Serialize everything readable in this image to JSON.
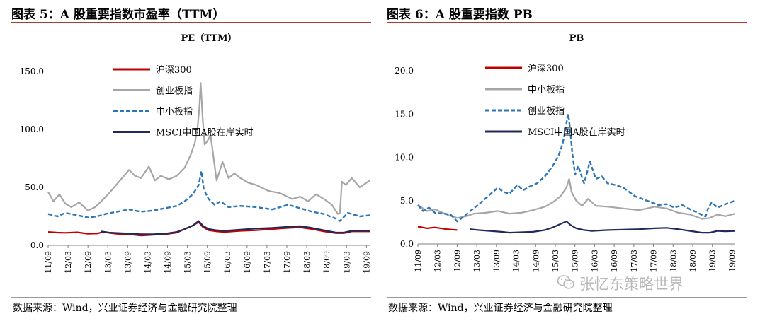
{
  "panels": [
    {
      "fig_title": "图表 5：A 股重要指数市盈率（TTM）",
      "source": "数据来源：Wind，兴业证券经济与金融研究院整理"
    },
    {
      "fig_title": "图表 6：A 股重要指数 PB",
      "source": "数据来源：Wind，兴业证券经济与金融研究院整理"
    }
  ],
  "watermark": "张忆东策略世界",
  "watermark_icon": "wechat-icon",
  "chart_data": [
    {
      "type": "line",
      "title": "PE（TTM）",
      "xlabel": "",
      "ylabel": "",
      "ylim": [
        0,
        150
      ],
      "yticks": [
        0,
        50,
        100,
        150
      ],
      "ytick_labels": [
        "0.0",
        "50.0",
        "100.0",
        "150.0"
      ],
      "xlim": [
        2011.667,
        2019.75
      ],
      "xticks": [
        2011.667,
        2012.167,
        2012.667,
        2013.167,
        2013.667,
        2014.167,
        2014.667,
        2015.167,
        2015.667,
        2016.167,
        2016.667,
        2017.167,
        2017.667,
        2018.167,
        2018.667,
        2019.167,
        2019.667
      ],
      "xtick_labels": [
        "11/09",
        "12/03",
        "12/09",
        "13/03",
        "13/09",
        "14/03",
        "14/09",
        "15/03",
        "15/09",
        "16/03",
        "16/09",
        "17/03",
        "17/09",
        "18/03",
        "18/09",
        "19/03",
        "19/09"
      ],
      "grid": false,
      "legend_position": "top-left-inside",
      "series": [
        {
          "name": "沪深300",
          "color": "#c00000",
          "style": "solid",
          "x": [
            2011.667,
            2011.9,
            2012.1,
            2012.4,
            2012.667,
            2012.9,
            2013.05,
            2013.25,
            2013.5,
            2013.8,
            2014.0,
            2014.3,
            2014.6,
            2014.9,
            2015.1,
            2015.3,
            2015.45,
            2015.55,
            2015.7,
            2015.9,
            2016.1,
            2016.5,
            2016.9,
            2017.3,
            2017.7,
            2018.0,
            2018.3,
            2018.6,
            2018.9,
            2019.1,
            2019.3,
            2019.5,
            2019.75
          ],
          "values": [
            11.5,
            11,
            10.8,
            11.2,
            10,
            10.2,
            11.5,
            10.5,
            9.5,
            9.2,
            8.5,
            9,
            9.5,
            11,
            14,
            17,
            20,
            16,
            13,
            12,
            11.5,
            12.5,
            13,
            14,
            15,
            15.5,
            14,
            12,
            10.5,
            10.5,
            12,
            12,
            12
          ]
        },
        {
          "name": "创业板指",
          "color": "#a6a6a6",
          "style": "solid",
          "x": [
            2011.667,
            2011.8,
            2011.95,
            2012.1,
            2012.25,
            2012.45,
            2012.667,
            2012.85,
            2013.0,
            2013.2,
            2013.45,
            2013.7,
            2013.85,
            2014.0,
            2014.2,
            2014.35,
            2014.5,
            2014.7,
            2014.9,
            2015.1,
            2015.25,
            2015.35,
            2015.42,
            2015.47,
            2015.5,
            2015.55,
            2015.6,
            2015.67,
            2015.75,
            2015.9,
            2016.05,
            2016.2,
            2016.35,
            2016.5,
            2016.7,
            2016.9,
            2017.2,
            2017.5,
            2017.8,
            2018.0,
            2018.2,
            2018.4,
            2018.6,
            2018.8,
            2018.95,
            2019.0,
            2019.05,
            2019.15,
            2019.3,
            2019.5,
            2019.75
          ],
          "values": [
            46,
            38,
            44,
            36,
            33,
            37,
            30,
            33,
            38,
            45,
            55,
            65,
            60,
            58,
            68,
            56,
            60,
            57,
            60,
            67,
            78,
            88,
            100,
            120,
            140,
            110,
            87,
            90,
            95,
            56,
            72,
            58,
            62,
            58,
            54,
            52,
            47,
            45,
            40,
            42,
            38,
            44,
            40,
            35,
            27,
            28,
            55,
            52,
            58,
            50,
            56
          ]
        },
        {
          "name": "中小板指",
          "color": "#2e75b6",
          "style": "dashed",
          "x": [
            2011.667,
            2011.9,
            2012.1,
            2012.4,
            2012.667,
            2012.9,
            2013.1,
            2013.4,
            2013.7,
            2014.0,
            2014.3,
            2014.6,
            2014.9,
            2015.1,
            2015.3,
            2015.45,
            2015.52,
            2015.58,
            2015.7,
            2015.85,
            2016.0,
            2016.2,
            2016.5,
            2016.9,
            2017.3,
            2017.7,
            2018.0,
            2018.3,
            2018.6,
            2018.9,
            2019.0,
            2019.2,
            2019.5,
            2019.75
          ],
          "values": [
            27,
            25,
            28,
            26,
            24,
            25,
            27,
            29,
            31,
            29,
            30,
            32,
            34,
            38,
            44,
            52,
            64,
            48,
            40,
            35,
            38,
            33,
            34,
            33,
            31,
            35,
            32,
            29,
            27,
            23,
            21,
            28,
            25,
            26
          ]
        },
        {
          "name": "MSCI中国A股在岸实时",
          "color": "#1f2a5a",
          "style": "solid",
          "x": [
            2013.0,
            2013.2,
            2013.5,
            2013.8,
            2014.0,
            2014.3,
            2014.6,
            2014.9,
            2015.1,
            2015.3,
            2015.45,
            2015.55,
            2015.7,
            2015.9,
            2016.1,
            2016.5,
            2016.9,
            2017.3,
            2017.7,
            2018.0,
            2018.3,
            2018.6,
            2018.9,
            2019.1,
            2019.3,
            2019.5,
            2019.75
          ],
          "values": [
            12,
            11,
            10.5,
            10,
            9.5,
            9.5,
            10,
            11.5,
            14,
            17,
            21,
            17,
            14,
            13,
            12.5,
            13.5,
            14.5,
            15,
            16,
            16.5,
            15,
            13,
            11,
            11,
            12.5,
            12.5,
            12.5
          ]
        }
      ]
    },
    {
      "type": "line",
      "title": "PB",
      "xlabel": "",
      "ylabel": "",
      "ylim": [
        0,
        20
      ],
      "yticks": [
        0,
        5,
        10,
        15,
        20
      ],
      "ytick_labels": [
        "0.0",
        "5.0",
        "10.0",
        "15.0",
        "20.0"
      ],
      "xlim": [
        2011.667,
        2019.75
      ],
      "xticks": [
        2011.667,
        2012.167,
        2012.667,
        2013.167,
        2013.667,
        2014.167,
        2014.667,
        2015.167,
        2015.667,
        2016.167,
        2016.667,
        2017.167,
        2017.667,
        2018.167,
        2018.667,
        2019.167,
        2019.667
      ],
      "xtick_labels": [
        "11/09",
        "12/03",
        "12/09",
        "13/03",
        "13/09",
        "14/03",
        "14/09",
        "15/03",
        "15/09",
        "16/03",
        "16/09",
        "17/03",
        "17/09",
        "18/03",
        "18/09",
        "19/03",
        "19/09"
      ],
      "grid": false,
      "legend_position": "top-center-inside",
      "series": [
        {
          "name": "沪深300",
          "color": "#c00000",
          "style": "solid",
          "x": [
            2011.667,
            2011.9,
            2012.1,
            2012.4,
            2012.667
          ],
          "values": [
            2.0,
            1.8,
            1.9,
            1.7,
            1.6
          ]
        },
        {
          "name": "中小板指",
          "color": "#a6a6a6",
          "style": "solid",
          "x": [
            2011.667,
            2011.9,
            2012.1,
            2012.4,
            2012.667,
            2012.9,
            2013.1,
            2013.4,
            2013.7,
            2014.0,
            2014.3,
            2014.6,
            2014.9,
            2015.1,
            2015.3,
            2015.45,
            2015.52,
            2015.58,
            2015.7,
            2015.85,
            2016.0,
            2016.2,
            2016.5,
            2016.9,
            2017.3,
            2017.7,
            2018.0,
            2018.3,
            2018.6,
            2018.9,
            2019.1,
            2019.3,
            2019.5,
            2019.75
          ],
          "values": [
            4.5,
            3.8,
            4.0,
            3.4,
            3.0,
            3.2,
            3.5,
            3.6,
            3.8,
            3.5,
            3.6,
            3.9,
            4.3,
            4.8,
            5.5,
            6.5,
            7.5,
            6.0,
            5.0,
            4.4,
            5.2,
            4.4,
            4.3,
            4.1,
            3.9,
            4.3,
            4.1,
            3.6,
            3.4,
            2.9,
            3.0,
            3.4,
            3.2,
            3.5
          ]
        },
        {
          "name": "创业板指",
          "color": "#2e75b6",
          "style": "dashed",
          "x": [
            2011.667,
            2011.8,
            2011.95,
            2012.1,
            2012.3,
            2012.5,
            2012.667,
            2012.85,
            2013.0,
            2013.2,
            2013.45,
            2013.7,
            2013.85,
            2014.0,
            2014.2,
            2014.35,
            2014.5,
            2014.7,
            2014.9,
            2015.1,
            2015.25,
            2015.35,
            2015.42,
            2015.47,
            2015.5,
            2015.55,
            2015.6,
            2015.67,
            2015.75,
            2015.9,
            2016.05,
            2016.2,
            2016.35,
            2016.5,
            2016.7,
            2016.9,
            2017.2,
            2017.5,
            2017.8,
            2018.0,
            2018.2,
            2018.4,
            2018.6,
            2018.8,
            2018.95,
            2019.0,
            2019.05,
            2019.15,
            2019.3,
            2019.5,
            2019.75
          ],
          "values": [
            4.5,
            3.8,
            4.2,
            3.6,
            3.5,
            3.4,
            2.6,
            3.2,
            3.8,
            4.5,
            5.5,
            6.5,
            6.0,
            5.8,
            6.8,
            6.2,
            6.6,
            7.0,
            7.8,
            9.0,
            10.2,
            11.5,
            13.0,
            14.5,
            15.0,
            13.0,
            10.5,
            8.0,
            9.0,
            7.0,
            9.5,
            7.5,
            7.8,
            7.0,
            6.8,
            6.5,
            5.5,
            5.0,
            4.5,
            4.6,
            4.2,
            4.5,
            4.0,
            3.6,
            3.2,
            3.2,
            4.0,
            4.8,
            4.2,
            4.6,
            5.0
          ]
        },
        {
          "name": "MSCI中国A股在岸实时",
          "color": "#1f2a5a",
          "style": "solid",
          "x": [
            2013.0,
            2013.2,
            2013.5,
            2013.8,
            2014.0,
            2014.3,
            2014.6,
            2014.9,
            2015.1,
            2015.3,
            2015.45,
            2015.55,
            2015.7,
            2015.9,
            2016.1,
            2016.5,
            2016.9,
            2017.3,
            2017.7,
            2018.0,
            2018.3,
            2018.6,
            2018.9,
            2019.1,
            2019.3,
            2019.5,
            2019.75
          ],
          "values": [
            1.7,
            1.6,
            1.5,
            1.4,
            1.3,
            1.35,
            1.4,
            1.6,
            1.9,
            2.3,
            2.6,
            2.2,
            1.8,
            1.6,
            1.5,
            1.6,
            1.65,
            1.7,
            1.8,
            1.85,
            1.7,
            1.5,
            1.3,
            1.3,
            1.5,
            1.45,
            1.5
          ]
        }
      ]
    }
  ]
}
